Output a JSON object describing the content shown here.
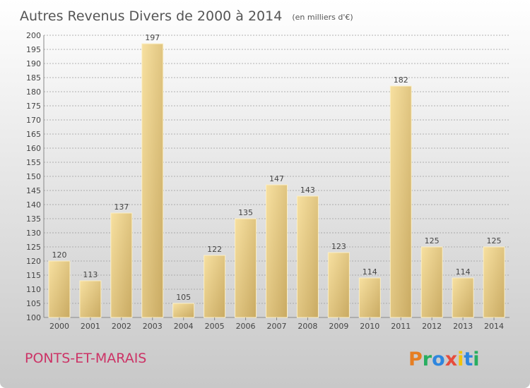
{
  "chart_data": {
    "type": "bar",
    "title": "Autres Revenus Divers de 2000 à 2014",
    "subtitle": "(en milliers d'€)",
    "categories": [
      "2000",
      "2001",
      "2002",
      "2003",
      "2004",
      "2005",
      "2006",
      "2007",
      "2008",
      "2009",
      "2010",
      "2011",
      "2012",
      "2013",
      "2014"
    ],
    "values": [
      120,
      113,
      137,
      197,
      105,
      122,
      135,
      147,
      143,
      123,
      114,
      182,
      125,
      114,
      125
    ],
    "ylim": [
      100,
      200
    ],
    "ytick_step": 5,
    "grid": true,
    "xlabel": "",
    "ylabel": ""
  },
  "location_label": "PONTS-ET-MARAIS",
  "brand": {
    "letters": [
      "P",
      "r",
      "o",
      "x",
      "i",
      "t",
      "i"
    ],
    "letter_colors": [
      "#e67e22",
      "#27ae60",
      "#2e86de",
      "#e74c3c",
      "#f1c40f",
      "#2e86de",
      "#27ae60"
    ]
  },
  "colors": {
    "bar_light": "#f7e0a0",
    "bar_dark": "#c9aa62",
    "grid": "#9a9a9a",
    "text": "#444444",
    "title": "#555555",
    "location": "#cc3366",
    "bg_top": "#ffffff",
    "bg_bottom": "#c8c8c8"
  }
}
